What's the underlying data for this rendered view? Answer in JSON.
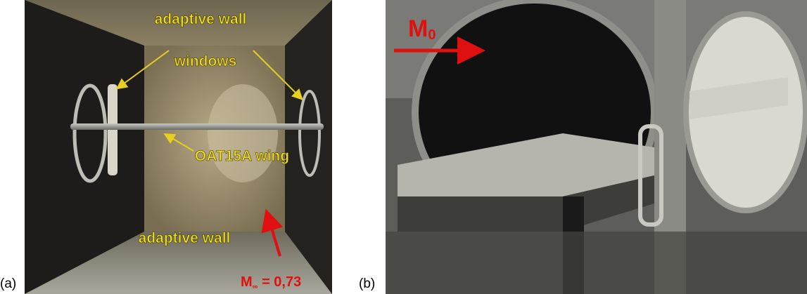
{
  "panels": [
    {
      "tag": "(a)",
      "labels": {
        "top_wall": "adaptive wall",
        "windows": "windows",
        "wing": "OAT15A wing",
        "bottom_wall": "adaptive wall"
      },
      "mach": {
        "symbol": "M",
        "subscript": "∞",
        "rest": " = 0,73"
      }
    },
    {
      "tag": "(b)",
      "mach": {
        "symbol": "M",
        "subscript": "0"
      }
    }
  ]
}
